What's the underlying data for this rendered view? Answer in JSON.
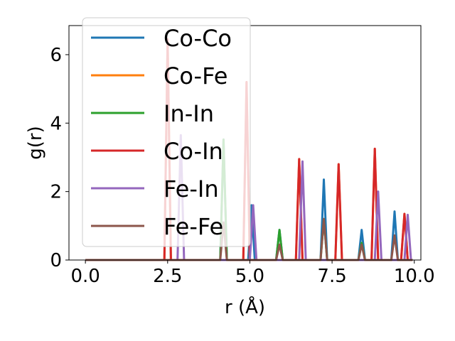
{
  "chart_data": {
    "type": "line",
    "title": "",
    "xlabel": "r (Å)",
    "ylabel": "g(r)",
    "xlim": [
      -0.5,
      10.2
    ],
    "ylim": [
      0,
      6.85
    ],
    "xticks": [
      0.0,
      2.5,
      5.0,
      7.5,
      10.0
    ],
    "xtick_labels": [
      "0.0",
      "2.5",
      "5.0",
      "7.5",
      "10.0"
    ],
    "yticks": [
      0,
      2,
      4,
      6
    ],
    "ytick_labels": [
      "0",
      "2",
      "4",
      "6"
    ],
    "grid": false,
    "legend_position": "top-left",
    "peak_halfwidth": 0.1,
    "r_max": 9.95,
    "series": [
      {
        "name": "Co-Co",
        "color": "#1f77b4",
        "peaks": [
          [
            4.2,
            3.52
          ],
          [
            5.05,
            1.6
          ],
          [
            5.9,
            0.88
          ],
          [
            7.25,
            2.35
          ],
          [
            8.4,
            0.88
          ],
          [
            9.4,
            1.42
          ]
        ]
      },
      {
        "name": "Co-Fe",
        "color": "#ff7f0e",
        "peaks": [
          [
            2.5,
            6.45
          ],
          [
            4.9,
            5.2
          ],
          [
            6.5,
            2.95
          ],
          [
            7.7,
            2.8
          ],
          [
            8.8,
            3.25
          ],
          [
            9.7,
            1.35
          ]
        ]
      },
      {
        "name": "In-In",
        "color": "#2ca02c",
        "peaks": [
          [
            4.2,
            3.52
          ],
          [
            5.9,
            0.88
          ],
          [
            7.25,
            1.2
          ],
          [
            8.4,
            0.5
          ]
        ]
      },
      {
        "name": "Co-In",
        "color": "#d62728",
        "peaks": [
          [
            2.5,
            6.45
          ],
          [
            4.9,
            5.2
          ],
          [
            6.5,
            2.95
          ],
          [
            7.7,
            2.8
          ],
          [
            8.8,
            3.25
          ],
          [
            9.7,
            1.35
          ]
        ]
      },
      {
        "name": "Fe-In",
        "color": "#9467bd",
        "peaks": [
          [
            2.9,
            3.65
          ],
          [
            5.1,
            1.6
          ],
          [
            6.6,
            2.88
          ],
          [
            8.9,
            2.0
          ],
          [
            9.8,
            1.32
          ]
        ]
      },
      {
        "name": "Fe-Fe",
        "color": "#8c564b",
        "peaks": [
          [
            4.2,
            1.1
          ],
          [
            5.9,
            0.45
          ],
          [
            7.25,
            1.2
          ],
          [
            8.4,
            0.45
          ],
          [
            9.4,
            0.72
          ]
        ]
      }
    ]
  }
}
